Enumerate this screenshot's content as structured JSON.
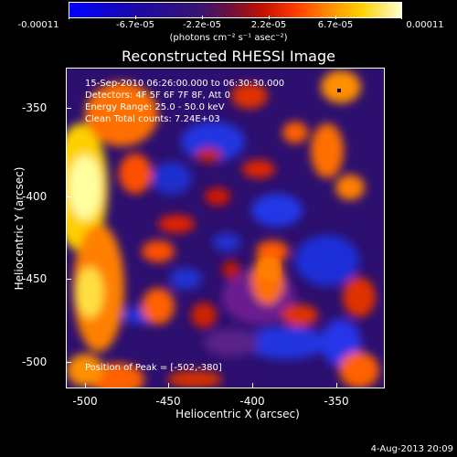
{
  "colorbar": {
    "ticks": [
      "-0.00011",
      "-6.7e-05",
      "-2.2e-05",
      "2.2e-05",
      "6.7e-05",
      "0.00011"
    ],
    "unit": "(photons cm⁻² s⁻¹ asec⁻²)"
  },
  "plot": {
    "title": "Reconstructed RHESSI Image",
    "info_lines": [
      "15-Sep-2010 06:26:00.000 to 06:30:30.000",
      "Detectors: 4F 5F 6F 7F 8F, Att 0",
      "Energy Range: 25.0 - 50.0 keV",
      "Clean    Total counts: 7.24E+03"
    ],
    "peak": "Position of Peak = [-502,-380]",
    "xlabel": "Heliocentric X (arcsec)",
    "ylabel": "Heliocentric Y (arcsec)",
    "xticks": [
      "-500",
      "-450",
      "-400",
      "-350"
    ],
    "yticks": [
      "-350",
      "-400",
      "-450",
      "-500"
    ]
  },
  "footer": {
    "date": "4-Aug-2013 20:09"
  },
  "colors": {
    "background": "#000000",
    "low": "#0000ff",
    "mid": "#3a1470",
    "high": "#ffffcc"
  }
}
